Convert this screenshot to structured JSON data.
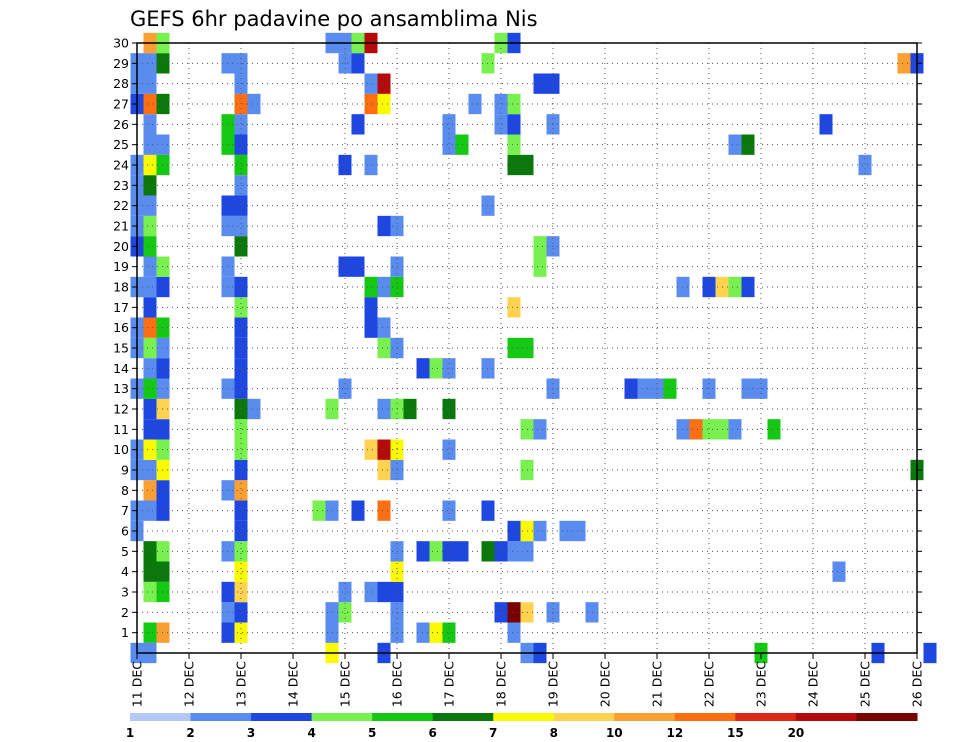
{
  "chart_data": {
    "type": "heatmap",
    "title": "GEFS 6hr padavine po ansamblima Nis",
    "xlabel": "",
    "ylabel": "",
    "x_ticks": [
      "11 DEC",
      "12 DEC",
      "13 DEC",
      "14 DEC",
      "15 DEC",
      "16 DEC",
      "17 DEC",
      "18 DEC",
      "19 DEC",
      "20 DEC",
      "21 DEC",
      "22 DEC",
      "23 DEC",
      "24 DEC",
      "25 DEC",
      "26 DEC"
    ],
    "y_ticks": [
      "1",
      "2",
      "3",
      "4",
      "5",
      "6",
      "7",
      "8",
      "9",
      "10",
      "11",
      "12",
      "13",
      "14",
      "15",
      "16",
      "17",
      "18",
      "19",
      "20",
      "21",
      "22",
      "23",
      "24",
      "25",
      "26",
      "27",
      "28",
      "29",
      "30"
    ],
    "y_range": [
      0,
      30
    ],
    "x_range_days": [
      11,
      26
    ],
    "x_step_hours": 6,
    "grid": true,
    "colorbar": {
      "labels": [
        "1",
        "2",
        "3",
        "4",
        "5",
        "6",
        "7",
        "8",
        "10",
        "12",
        "15",
        "20"
      ],
      "colors": [
        "#b4c8f5",
        "#5a8cf0",
        "#1e46e0",
        "#78f050",
        "#14c814",
        "#0a780a",
        "#fafa00",
        "#ffd250",
        "#faa032",
        "#fa6e14",
        "#dc2814",
        "#b40a0a",
        "#780000"
      ]
    },
    "legend": "bottom",
    "series": [
      {
        "member": 0,
        "cells": [
          [
            11.0,
            1
          ],
          [
            11.25,
            1
          ],
          [
            14.75,
            6
          ],
          [
            15.75,
            2
          ],
          [
            18.5,
            1
          ],
          [
            18.75,
            2
          ],
          [
            23.0,
            4
          ],
          [
            25.25,
            2
          ],
          [
            26.25,
            2
          ]
        ]
      },
      {
        "member": 1,
        "cells": [
          [
            11.25,
            4
          ],
          [
            11.5,
            8
          ],
          [
            12.75,
            2
          ],
          [
            13.0,
            6
          ],
          [
            14.75,
            1
          ],
          [
            16.0,
            1
          ],
          [
            16.5,
            1
          ],
          [
            16.75,
            6
          ],
          [
            17.0,
            4
          ],
          [
            18.25,
            1
          ]
        ]
      },
      {
        "member": 2,
        "cells": [
          [
            12.75,
            1
          ],
          [
            13.0,
            2
          ],
          [
            14.75,
            1
          ],
          [
            15.0,
            3
          ],
          [
            16.0,
            1
          ],
          [
            18.0,
            2
          ],
          [
            18.25,
            12
          ],
          [
            18.5,
            7
          ],
          [
            19.0,
            1
          ],
          [
            19.75,
            1
          ]
        ]
      },
      {
        "member": 3,
        "cells": [
          [
            11.25,
            3
          ],
          [
            11.5,
            4
          ],
          [
            12.75,
            2
          ],
          [
            13.0,
            7
          ],
          [
            15.0,
            1
          ],
          [
            15.5,
            1
          ],
          [
            15.75,
            2
          ],
          [
            16.0,
            2
          ]
        ]
      },
      {
        "member": 4,
        "cells": [
          [
            11.25,
            5
          ],
          [
            11.5,
            5
          ],
          [
            13.0,
            6
          ],
          [
            16.0,
            6
          ],
          [
            24.5,
            1
          ]
        ]
      },
      {
        "member": 5,
        "cells": [
          [
            11.25,
            5
          ],
          [
            11.5,
            3
          ],
          [
            12.75,
            1
          ],
          [
            13.0,
            3
          ],
          [
            16.0,
            1
          ],
          [
            16.5,
            2
          ],
          [
            16.75,
            3
          ],
          [
            17.0,
            2
          ],
          [
            17.25,
            2
          ],
          [
            17.75,
            5
          ],
          [
            18.0,
            2
          ],
          [
            18.25,
            1
          ],
          [
            18.5,
            1
          ]
        ]
      },
      {
        "member": 6,
        "cells": [
          [
            11.0,
            1
          ],
          [
            13.0,
            2
          ],
          [
            18.25,
            2
          ],
          [
            18.5,
            6
          ],
          [
            18.75,
            1
          ],
          [
            19.25,
            1
          ],
          [
            19.5,
            1
          ]
        ]
      },
      {
        "member": 7,
        "cells": [
          [
            11.0,
            1
          ],
          [
            11.25,
            1
          ],
          [
            11.5,
            2
          ],
          [
            13.0,
            2
          ],
          [
            14.5,
            3
          ],
          [
            14.75,
            1
          ],
          [
            15.25,
            2
          ],
          [
            15.75,
            9
          ],
          [
            17.0,
            1
          ],
          [
            17.75,
            2
          ]
        ]
      },
      {
        "member": 8,
        "cells": [
          [
            11.25,
            8
          ],
          [
            11.5,
            2
          ],
          [
            12.75,
            1
          ],
          [
            13.0,
            8
          ]
        ]
      },
      {
        "member": 9,
        "cells": [
          [
            11.0,
            1
          ],
          [
            11.25,
            1
          ],
          [
            11.5,
            6
          ],
          [
            13.0,
            2
          ],
          [
            15.75,
            7
          ],
          [
            16.0,
            1
          ],
          [
            18.5,
            3
          ],
          [
            26.0,
            5
          ]
        ]
      },
      {
        "member": 10,
        "cells": [
          [
            11.0,
            1
          ],
          [
            11.25,
            6
          ],
          [
            11.5,
            3
          ],
          [
            13.0,
            3
          ],
          [
            15.5,
            7
          ],
          [
            15.75,
            11
          ],
          [
            16.0,
            6
          ],
          [
            17.0,
            1
          ]
        ]
      },
      {
        "member": 11,
        "cells": [
          [
            11.25,
            2
          ],
          [
            11.5,
            2
          ],
          [
            13.0,
            3
          ],
          [
            18.5,
            3
          ],
          [
            18.75,
            1
          ],
          [
            21.5,
            1
          ],
          [
            21.75,
            9
          ],
          [
            22.0,
            3
          ],
          [
            22.25,
            3
          ],
          [
            22.5,
            1
          ],
          [
            23.25,
            4
          ]
        ]
      },
      {
        "member": 12,
        "cells": [
          [
            11.25,
            2
          ],
          [
            11.5,
            7
          ],
          [
            13.0,
            5
          ],
          [
            13.25,
            1
          ],
          [
            14.75,
            3
          ],
          [
            15.75,
            1
          ],
          [
            16.0,
            3
          ],
          [
            16.25,
            5
          ],
          [
            17.0,
            5
          ]
        ]
      },
      {
        "member": 13,
        "cells": [
          [
            11.0,
            1
          ],
          [
            11.25,
            4
          ],
          [
            11.5,
            1
          ],
          [
            12.75,
            1
          ],
          [
            13.0,
            2
          ],
          [
            15.0,
            1
          ],
          [
            19.0,
            1
          ],
          [
            20.5,
            2
          ],
          [
            20.75,
            1
          ],
          [
            21.0,
            1
          ],
          [
            21.25,
            4
          ],
          [
            22.0,
            1
          ],
          [
            22.75,
            1
          ],
          [
            23.0,
            1
          ]
        ]
      },
      {
        "member": 14,
        "cells": [
          [
            11.25,
            1
          ],
          [
            11.5,
            2
          ],
          [
            13.0,
            2
          ],
          [
            16.5,
            2
          ],
          [
            16.75,
            3
          ],
          [
            17.0,
            1
          ],
          [
            17.75,
            1
          ]
        ]
      },
      {
        "member": 15,
        "cells": [
          [
            11.0,
            1
          ],
          [
            11.25,
            3
          ],
          [
            11.5,
            1
          ],
          [
            13.0,
            2
          ],
          [
            15.75,
            3
          ],
          [
            16.0,
            1
          ],
          [
            18.25,
            4
          ],
          [
            18.5,
            4
          ]
        ]
      },
      {
        "member": 16,
        "cells": [
          [
            11.0,
            1
          ],
          [
            11.25,
            9
          ],
          [
            11.5,
            4
          ],
          [
            13.0,
            2
          ],
          [
            15.5,
            2
          ],
          [
            15.75,
            1
          ]
        ]
      },
      {
        "member": 17,
        "cells": [
          [
            11.25,
            2
          ],
          [
            13.0,
            3
          ],
          [
            15.5,
            2
          ],
          [
            18.25,
            7
          ]
        ]
      },
      {
        "member": 18,
        "cells": [
          [
            11.0,
            1
          ],
          [
            11.25,
            1
          ],
          [
            11.5,
            2
          ],
          [
            12.75,
            1
          ],
          [
            13.0,
            2
          ],
          [
            15.5,
            4
          ],
          [
            15.75,
            1
          ],
          [
            16.0,
            4
          ],
          [
            21.5,
            1
          ],
          [
            22.0,
            2
          ],
          [
            22.25,
            7
          ],
          [
            22.5,
            3
          ],
          [
            22.75,
            2
          ]
        ]
      },
      {
        "member": 19,
        "cells": [
          [
            11.25,
            1
          ],
          [
            11.5,
            3
          ],
          [
            12.75,
            1
          ],
          [
            15.0,
            2
          ],
          [
            15.25,
            2
          ],
          [
            16.0,
            1
          ],
          [
            18.75,
            3
          ]
        ]
      },
      {
        "member": 20,
        "cells": [
          [
            11.0,
            2
          ],
          [
            11.25,
            4
          ],
          [
            13.0,
            5
          ],
          [
            18.75,
            3
          ],
          [
            19.0,
            1
          ]
        ]
      },
      {
        "member": 21,
        "cells": [
          [
            11.0,
            1
          ],
          [
            11.25,
            3
          ],
          [
            12.75,
            1
          ],
          [
            13.0,
            1
          ],
          [
            15.75,
            2
          ],
          [
            16.0,
            1
          ]
        ]
      },
      {
        "member": 22,
        "cells": [
          [
            11.0,
            1
          ],
          [
            11.25,
            1
          ],
          [
            12.75,
            2
          ],
          [
            13.0,
            2
          ],
          [
            17.75,
            1
          ]
        ]
      },
      {
        "member": 23,
        "cells": [
          [
            11.0,
            1
          ],
          [
            11.25,
            5
          ],
          [
            13.0,
            1
          ]
        ]
      },
      {
        "member": 24,
        "cells": [
          [
            11.0,
            1
          ],
          [
            11.25,
            6
          ],
          [
            11.5,
            4
          ],
          [
            13.0,
            4
          ],
          [
            15.0,
            2
          ],
          [
            15.5,
            1
          ],
          [
            18.25,
            5
          ],
          [
            18.5,
            5
          ],
          [
            25.0,
            1
          ]
        ]
      },
      {
        "member": 25,
        "cells": [
          [
            11.25,
            1
          ],
          [
            11.5,
            1
          ],
          [
            12.75,
            4
          ],
          [
            13.0,
            2
          ],
          [
            17.0,
            1
          ],
          [
            17.25,
            4
          ],
          [
            18.25,
            3
          ],
          [
            22.5,
            1
          ],
          [
            22.75,
            5
          ]
        ]
      },
      {
        "member": 26,
        "cells": [
          [
            11.25,
            1
          ],
          [
            12.75,
            4
          ],
          [
            13.0,
            1
          ],
          [
            15.25,
            2
          ],
          [
            17.0,
            1
          ],
          [
            18.0,
            1
          ],
          [
            18.25,
            2
          ],
          [
            19.0,
            1
          ],
          [
            24.25,
            2
          ]
        ]
      },
      {
        "member": 27,
        "cells": [
          [
            11.0,
            2
          ],
          [
            11.25,
            9
          ],
          [
            11.5,
            5
          ],
          [
            13.0,
            9
          ],
          [
            13.25,
            1
          ],
          [
            15.5,
            9
          ],
          [
            15.75,
            6
          ],
          [
            17.5,
            1
          ],
          [
            18.0,
            1
          ],
          [
            18.25,
            3
          ]
        ]
      },
      {
        "member": 28,
        "cells": [
          [
            11.0,
            1
          ],
          [
            11.25,
            1
          ],
          [
            13.0,
            1
          ],
          [
            15.5,
            1
          ],
          [
            15.75,
            11
          ],
          [
            18.75,
            2
          ],
          [
            19.0,
            2
          ]
        ]
      },
      {
        "member": 29,
        "cells": [
          [
            11.0,
            1
          ],
          [
            11.25,
            1
          ],
          [
            11.5,
            5
          ],
          [
            12.75,
            1
          ],
          [
            13.0,
            1
          ],
          [
            15.0,
            1
          ],
          [
            15.25,
            2
          ],
          [
            17.75,
            3
          ],
          [
            25.75,
            8
          ],
          [
            26.0,
            2
          ]
        ]
      },
      {
        "member": 30,
        "cells": [
          [
            11.25,
            8
          ],
          [
            11.5,
            3
          ],
          [
            14.75,
            1
          ],
          [
            15.0,
            1
          ],
          [
            15.25,
            3
          ],
          [
            15.5,
            11
          ],
          [
            18.0,
            3
          ],
          [
            18.25,
            2
          ]
        ]
      }
    ]
  }
}
